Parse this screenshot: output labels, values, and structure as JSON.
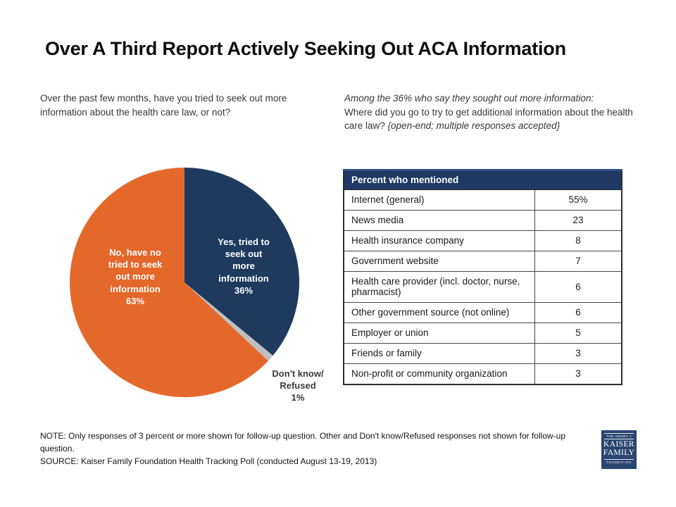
{
  "title": "Over A Third Report Actively Seeking Out ACA Information",
  "questions": {
    "pie_question": "Over the past few months, have you tried to seek out more information about the health care law, or not?",
    "followup_intro": "Among the 36% who say they sought out more information:",
    "followup_question": "Where did you go to try to get additional information about the health care law? ",
    "followup_parenthetical": "{open-end; multiple responses accepted}"
  },
  "chart_data": [
    {
      "type": "pie",
      "title": "Have you tried to seek out more information about the health care law?",
      "direction": "clockwise",
      "start_angle_deg": 0,
      "slices": [
        {
          "name": "Yes, tried to seek out more information",
          "value": 36,
          "pct_label": "36%",
          "color": "#1e3a5f",
          "label": "Yes, tried to\nseek out\nmore\ninformation"
        },
        {
          "name": "Don't know/Refused",
          "value": 1,
          "pct_label": "1%",
          "color": "#bfbfbf",
          "label": "Don't know/\nRefused"
        },
        {
          "name": "No, have no tried to seek out more information",
          "value": 63,
          "pct_label": "63%",
          "color": "#e5682b",
          "label": "No, have no\ntried to seek\nout more\ninformation"
        }
      ]
    },
    {
      "type": "table",
      "title": "Percent who mentioned",
      "rows": [
        [
          "Internet (general)",
          "55%"
        ],
        [
          "News media",
          "23"
        ],
        [
          "Health insurance company",
          "8"
        ],
        [
          "Government website",
          "7"
        ],
        [
          "Health care provider (incl. doctor, nurse, pharmacist)",
          "6"
        ],
        [
          "Other government source (not online)",
          "6"
        ],
        [
          "Employer or union",
          "5"
        ],
        [
          "Friends or family",
          "3"
        ],
        [
          "Non-profit or community organization",
          "3"
        ]
      ]
    }
  ],
  "footer": {
    "note": "NOTE: Only responses of 3 percent or more shown for follow-up question. Other and Don't know/Refused responses not shown for follow-up question.",
    "source": "SOURCE: Kaiser Family Foundation Health Tracking Poll (conducted August 13-19, 2013)"
  },
  "logo": {
    "line1": "THE HENRY J",
    "line2": "KAISER",
    "line3": "FAMILY",
    "line4": "FOUNDATION"
  },
  "colors": {
    "pie_yes_navy": "#1e3a5f",
    "pie_no_orange": "#e5682b",
    "pie_dk_gray": "#bfbfbf",
    "table_header_navy": "#1f3864",
    "logo_navy": "#2a4570",
    "text_dark": "#383838"
  }
}
